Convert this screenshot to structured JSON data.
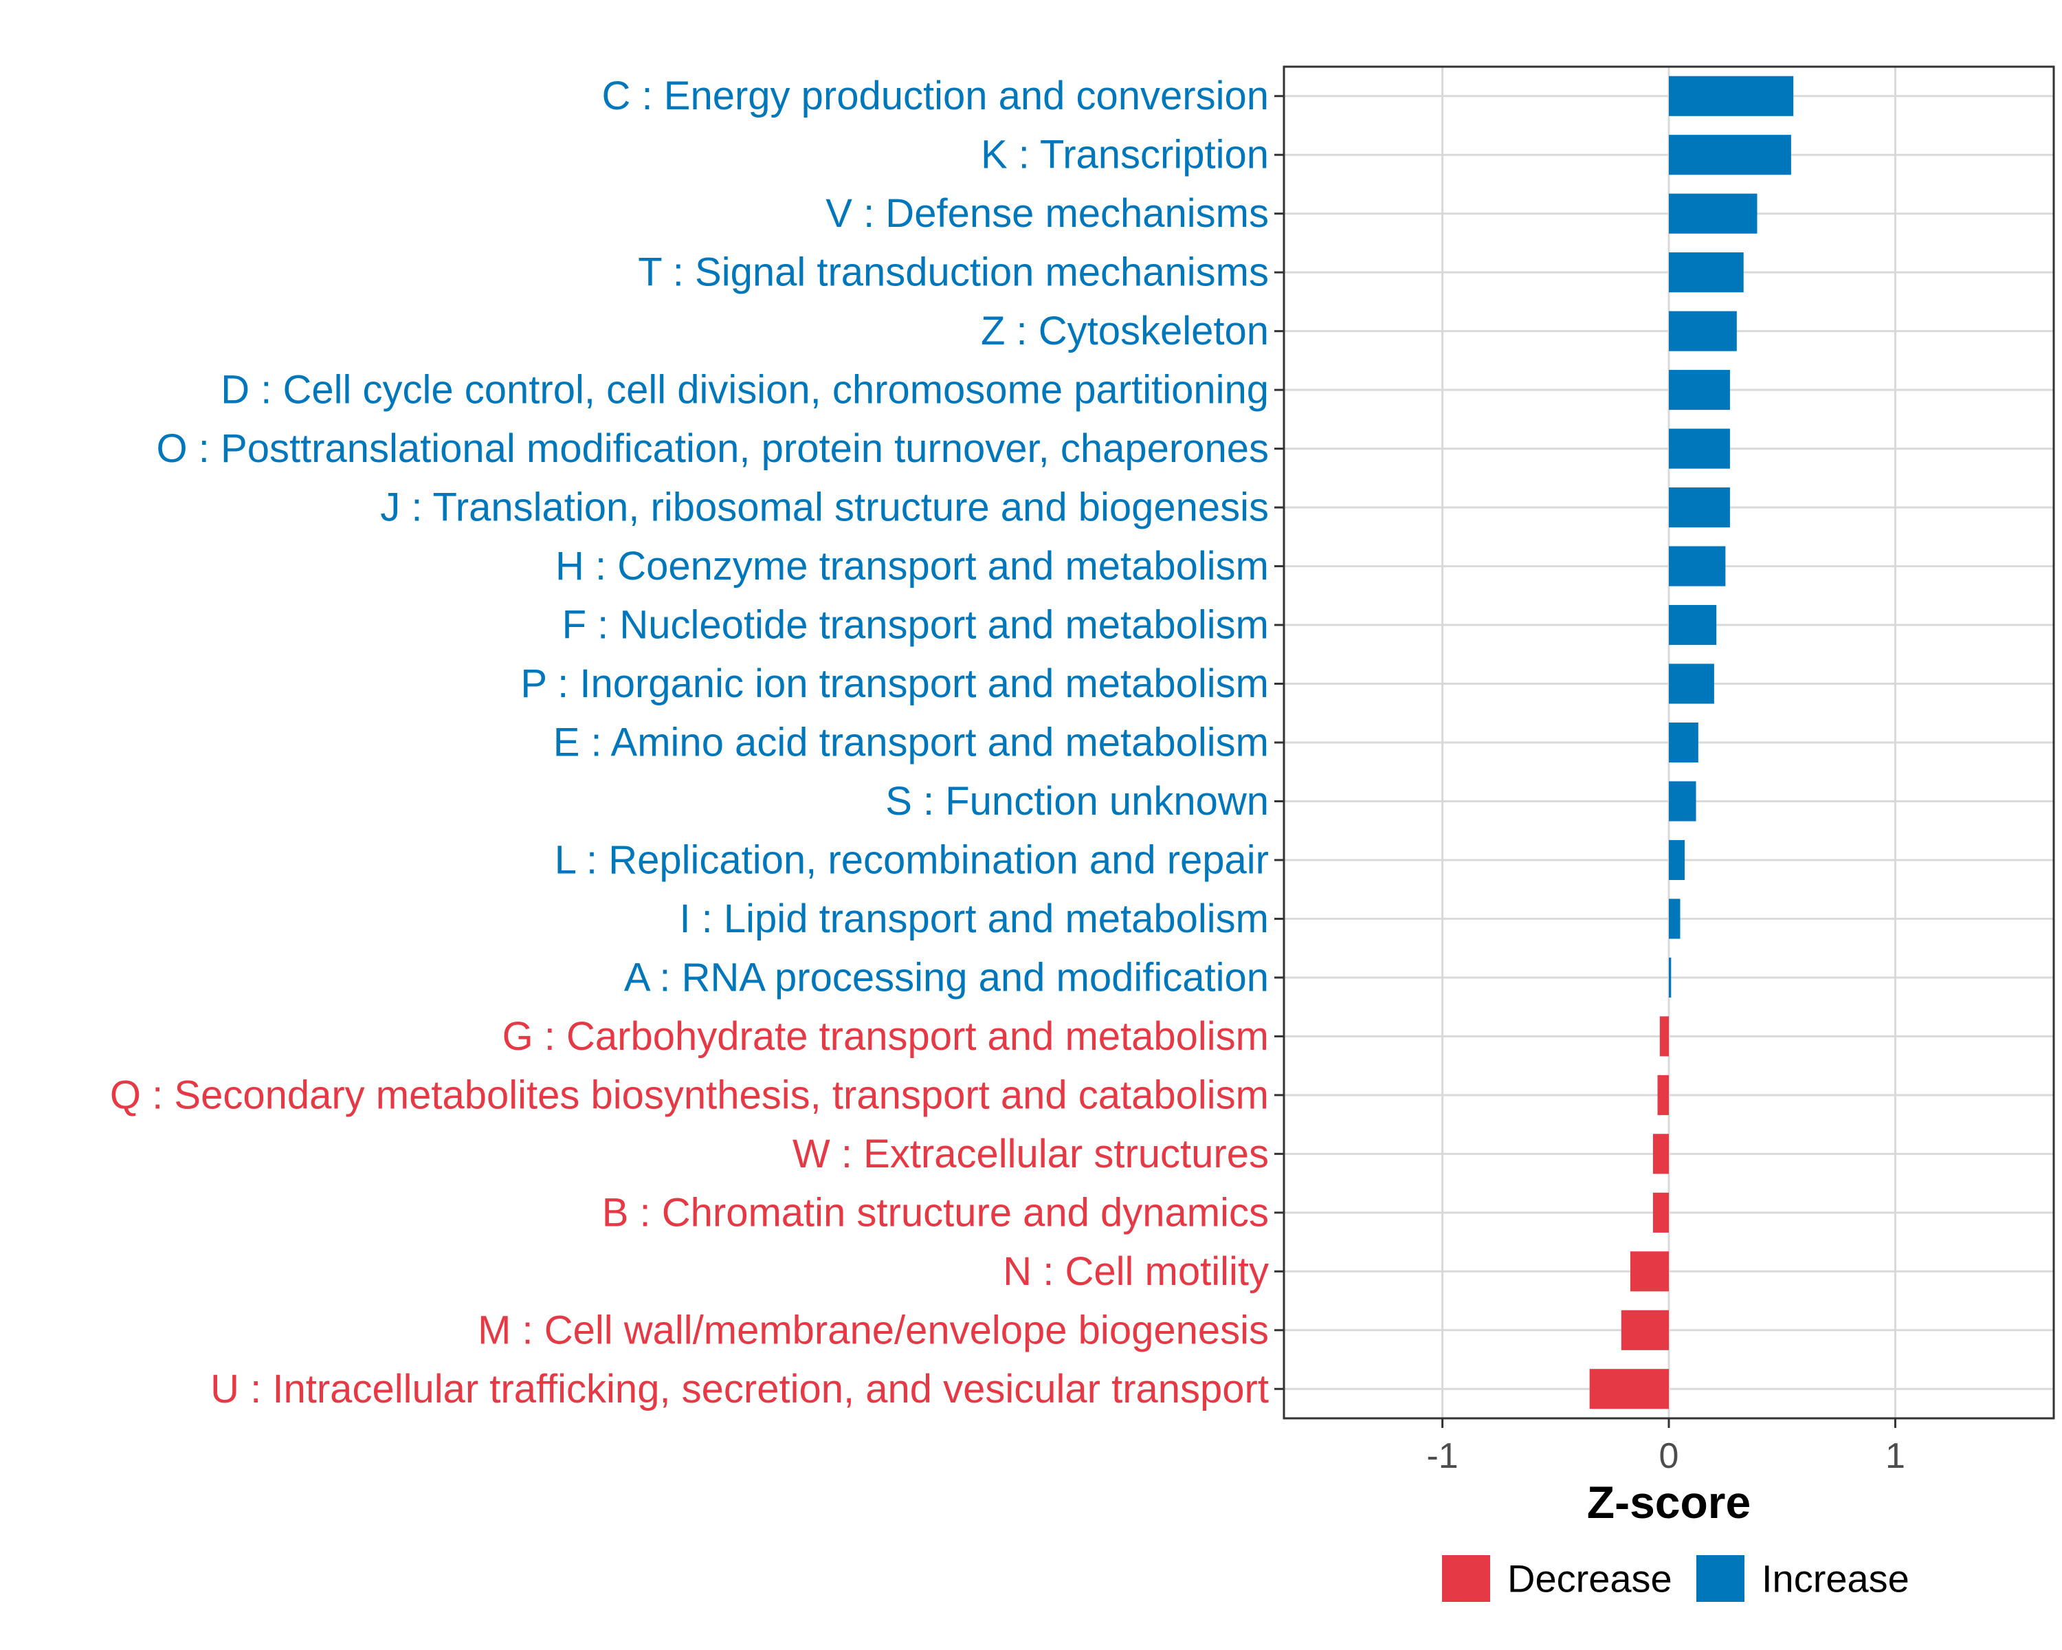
{
  "colors": {
    "increase": "#0077bb",
    "decrease": "#e63946",
    "grid": "#d9d9d9",
    "panel_border": "#333333",
    "tick_text": "#4d4d4d"
  },
  "chart_data": {
    "type": "bar",
    "orientation": "horizontal",
    "xlabel": "Z-score",
    "ylabel": "",
    "xlim": [
      -1.7,
      1.7
    ],
    "xticks": [
      -1,
      0,
      1
    ],
    "xtick_labels": [
      "-1",
      "0",
      "1"
    ],
    "grid": true,
    "legend": {
      "position": "bottom",
      "entries": [
        {
          "name": "Decrease",
          "color_key": "decrease"
        },
        {
          "name": "Increase",
          "color_key": "increase"
        }
      ]
    },
    "categories": [
      "C : Energy production and conversion",
      "K : Transcription",
      "V : Defense mechanisms",
      "T : Signal transduction mechanisms",
      "Z : Cytoskeleton",
      "D : Cell cycle control, cell division, chromosome partitioning",
      "O : Posttranslational modification, protein turnover, chaperones",
      "J : Translation, ribosomal structure and biogenesis",
      "H : Coenzyme transport and metabolism",
      "F : Nucleotide transport and metabolism",
      "P : Inorganic ion transport and metabolism",
      "E : Amino acid transport and metabolism",
      "S : Function unknown",
      "L : Replication, recombination and repair",
      "I : Lipid transport and metabolism",
      "A : RNA processing and modification",
      "G : Carbohydrate transport and metabolism",
      "Q : Secondary metabolites biosynthesis, transport and catabolism",
      "W : Extracellular structures",
      "B : Chromatin structure and dynamics",
      "N : Cell motility",
      "M : Cell wall/membrane/envelope biogenesis",
      "U : Intracellular trafficking, secretion, and vesicular transport"
    ],
    "values": [
      0.55,
      0.54,
      0.39,
      0.33,
      0.3,
      0.27,
      0.27,
      0.27,
      0.25,
      0.21,
      0.2,
      0.13,
      0.12,
      0.07,
      0.05,
      0.01,
      -0.04,
      -0.05,
      -0.07,
      -0.07,
      -0.17,
      -0.21,
      -0.35
    ],
    "direction": [
      "Increase",
      "Increase",
      "Increase",
      "Increase",
      "Increase",
      "Increase",
      "Increase",
      "Increase",
      "Increase",
      "Increase",
      "Increase",
      "Increase",
      "Increase",
      "Increase",
      "Increase",
      "Increase",
      "Decrease",
      "Decrease",
      "Decrease",
      "Decrease",
      "Decrease",
      "Decrease",
      "Decrease"
    ]
  }
}
